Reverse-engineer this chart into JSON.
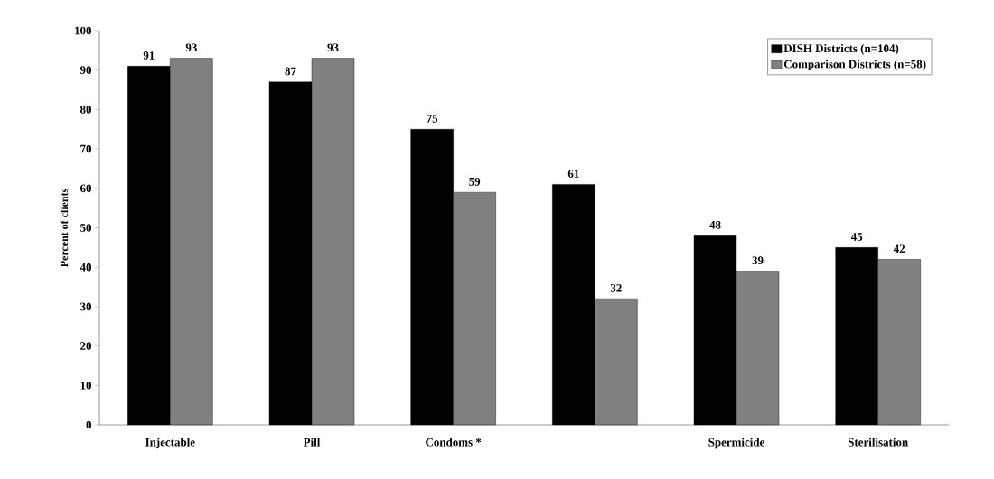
{
  "chart_data": {
    "type": "bar",
    "ylabel": "Percent of clients",
    "categories": [
      "Injectable",
      "Pill",
      "Condoms *",
      null,
      "Spermicide",
      "Sterilisation"
    ],
    "series": [
      {
        "name": "DISH Districts (n=104)",
        "color": "#000000",
        "values": [
          91,
          87,
          75,
          61,
          48,
          45
        ]
      },
      {
        "name": "Comparison Districts (n=58)",
        "color": "#808080",
        "values": [
          93,
          93,
          59,
          32,
          39,
          42
        ]
      }
    ],
    "ylim": [
      0,
      100
    ],
    "yticks": [
      0,
      10,
      20,
      30,
      40,
      50,
      60,
      70,
      80,
      90,
      100
    ],
    "data_labels": true,
    "legend": "top right",
    "grid": false
  }
}
